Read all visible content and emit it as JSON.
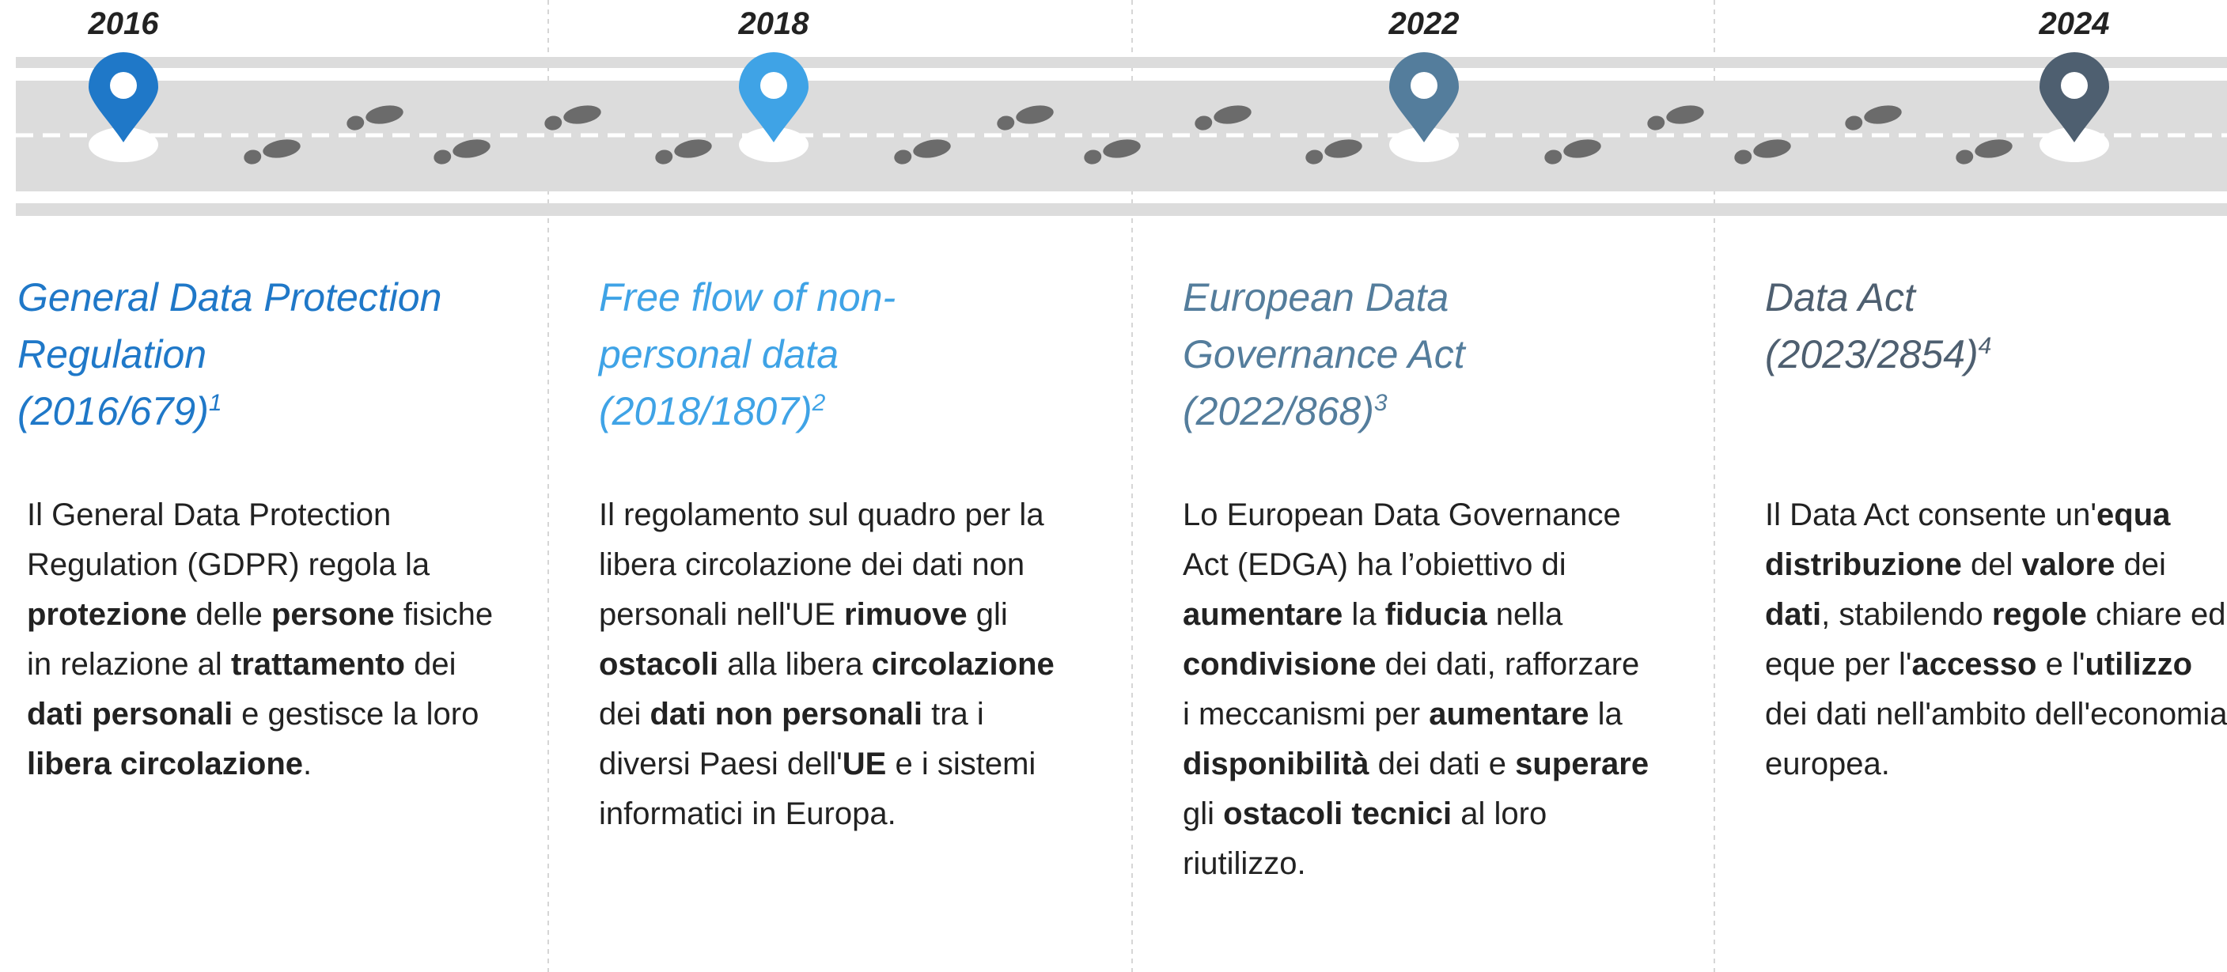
{
  "timeline": {
    "items": [
      {
        "year": "2016",
        "color": "#1f78c8",
        "title_lines": [
          "General Data Protection",
          "Regulation",
          "(2016/679)"
        ],
        "note": "1",
        "body": [
          {
            "text": "Il General Data Protection Regulation (GDPR) regola la "
          },
          {
            "text": "protezione",
            "bold": true
          },
          {
            "text": " delle "
          },
          {
            "text": "persone",
            "bold": true
          },
          {
            "text": " fisiche in relazione al "
          },
          {
            "text": "trattamento",
            "bold": true
          },
          {
            "text": " dei "
          },
          {
            "text": "dati personali",
            "bold": true
          },
          {
            "text": " e gestisce la loro "
          },
          {
            "text": "libera circolazione",
            "bold": true
          },
          {
            "text": "."
          }
        ]
      },
      {
        "year": "2018",
        "color": "#3fa3e6",
        "title_lines": [
          "Free flow of non-",
          "personal data",
          "(2018/1807)"
        ],
        "note": "2",
        "body": [
          {
            "text": "Il regolamento sul quadro per la libera circolazione dei dati non personali nell'UE "
          },
          {
            "text": "rimuove",
            "bold": true
          },
          {
            "text": " gli "
          },
          {
            "text": "ostacoli",
            "bold": true
          },
          {
            "text": " alla libera "
          },
          {
            "text": "circolazione",
            "bold": true
          },
          {
            "text": " dei "
          },
          {
            "text": "dati non personali",
            "bold": true
          },
          {
            "text": " tra i diversi Paesi dell'"
          },
          {
            "text": "UE",
            "bold": true
          },
          {
            "text": " e i sistemi informatici in Europa."
          }
        ]
      },
      {
        "year": "2022",
        "color": "#547d9c",
        "title_lines": [
          "European Data",
          "Governance Act",
          "(2022/868)"
        ],
        "note": "3",
        "body": [
          {
            "text": "Lo European Data Governance Act (EDGA) ha l’obiettivo di "
          },
          {
            "text": "aumentare",
            "bold": true
          },
          {
            "text": " la "
          },
          {
            "text": "fiducia",
            "bold": true
          },
          {
            "text": " nella "
          },
          {
            "text": "condivisione",
            "bold": true
          },
          {
            "text": " dei dati, rafforzare i meccanismi per "
          },
          {
            "text": "aumentare",
            "bold": true
          },
          {
            "text": " la "
          },
          {
            "text": "disponibilità",
            "bold": true
          },
          {
            "text": " dei dati e "
          },
          {
            "text": "superare",
            "bold": true
          },
          {
            "text": " gli "
          },
          {
            "text": "ostacoli tecnici",
            "bold": true
          },
          {
            "text": " al loro riutilizzo."
          }
        ]
      },
      {
        "year": "2024",
        "color": "#4e5f70",
        "title_lines": [
          "Data Act",
          "(2023/2854)"
        ],
        "note": "4",
        "body": [
          {
            "text": "Il Data Act consente un'"
          },
          {
            "text": "equa distribuzione",
            "bold": true
          },
          {
            "text": " del "
          },
          {
            "text": "valore",
            "bold": true
          },
          {
            "text": " dei "
          },
          {
            "text": "dati",
            "bold": true
          },
          {
            "text": ", stabilendo "
          },
          {
            "text": "regole",
            "bold": true
          },
          {
            "text": " chiare ed eque per l'"
          },
          {
            "text": "accesso",
            "bold": true
          },
          {
            "text": " e l'"
          },
          {
            "text": "utilizzo",
            "bold": true
          },
          {
            "text": " dei dati nell'ambito dell'economia europea."
          }
        ]
      }
    ]
  }
}
